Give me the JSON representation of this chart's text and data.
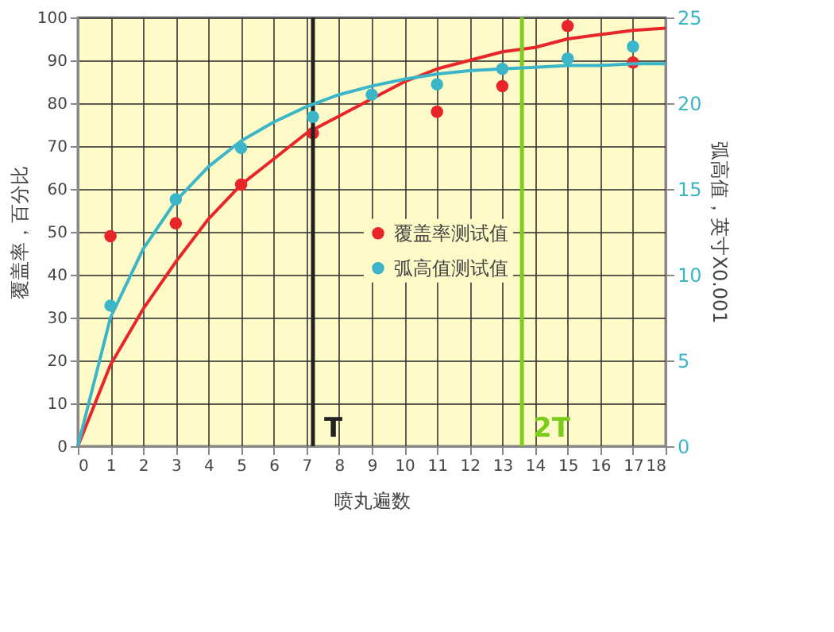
{
  "chart_data": {
    "type": "line",
    "xlabel": "喷丸遍数",
    "ylabel": "覆盖率，百分比",
    "y2label": "弧高值，英寸X0.001",
    "xlim": [
      0,
      18
    ],
    "xticks": [
      0,
      1,
      2,
      3,
      4,
      5,
      6,
      7,
      8,
      9,
      10,
      11,
      12,
      13,
      14,
      15,
      16,
      17,
      18
    ],
    "ylim": [
      0,
      100
    ],
    "yticks": [
      0,
      10,
      20,
      30,
      40,
      50,
      60,
      70,
      80,
      90,
      100
    ],
    "y2lim": [
      0,
      25
    ],
    "y2ticks": [
      0,
      5,
      10,
      15,
      20,
      25
    ],
    "grid": true,
    "legend": "right",
    "series": [
      {
        "marker": "none",
        "color": "#e8262a",
        "x": [
          0,
          1,
          2,
          3,
          4,
          5,
          6,
          7,
          8,
          9,
          10,
          11,
          12,
          13,
          14,
          15,
          16,
          17,
          18
        ],
        "values": [
          0,
          19,
          32,
          43,
          53,
          61,
          67,
          73,
          77,
          81,
          85,
          88,
          90,
          92,
          93,
          95,
          96,
          97,
          97.5
        ]
      },
      {
        "marker": "none",
        "axis": "y2",
        "color": "#3ab6c8",
        "x": [
          0,
          1,
          2,
          3,
          4,
          5,
          6,
          7,
          8,
          9,
          10,
          11,
          12,
          13,
          14,
          15,
          16,
          17,
          18
        ],
        "values": [
          0,
          7.5,
          11.5,
          14.3,
          16.3,
          17.8,
          18.9,
          19.8,
          20.5,
          21,
          21.4,
          21.7,
          21.9,
          22,
          22.1,
          22.2,
          22.2,
          22.3,
          22.3
        ]
      },
      {
        "name": "覆盖率测试值",
        "type": "scatter",
        "marker": "circle",
        "color": "#e8262a",
        "x": [
          1,
          3,
          5,
          7.2,
          11,
          13,
          15,
          17
        ],
        "values": [
          49,
          52,
          61,
          73,
          78,
          84,
          98,
          89.5
        ]
      },
      {
        "name": "弧高值测试值",
        "type": "scatter",
        "marker": "circle",
        "axis": "y2",
        "color": "#3ab6c8",
        "x": [
          1,
          3,
          5,
          7.2,
          9,
          11,
          13,
          15,
          17
        ],
        "values": [
          8.2,
          14.4,
          17.4,
          19.2,
          20.5,
          21.1,
          22,
          22.6,
          23.3
        ]
      }
    ],
    "ref_lines": [
      {
        "axis": "x",
        "value": 7.2,
        "label": "T",
        "color": "#222222"
      },
      {
        "axis": "x",
        "value": 13.6,
        "label": "2T",
        "color": "#7ccc1c"
      }
    ]
  }
}
